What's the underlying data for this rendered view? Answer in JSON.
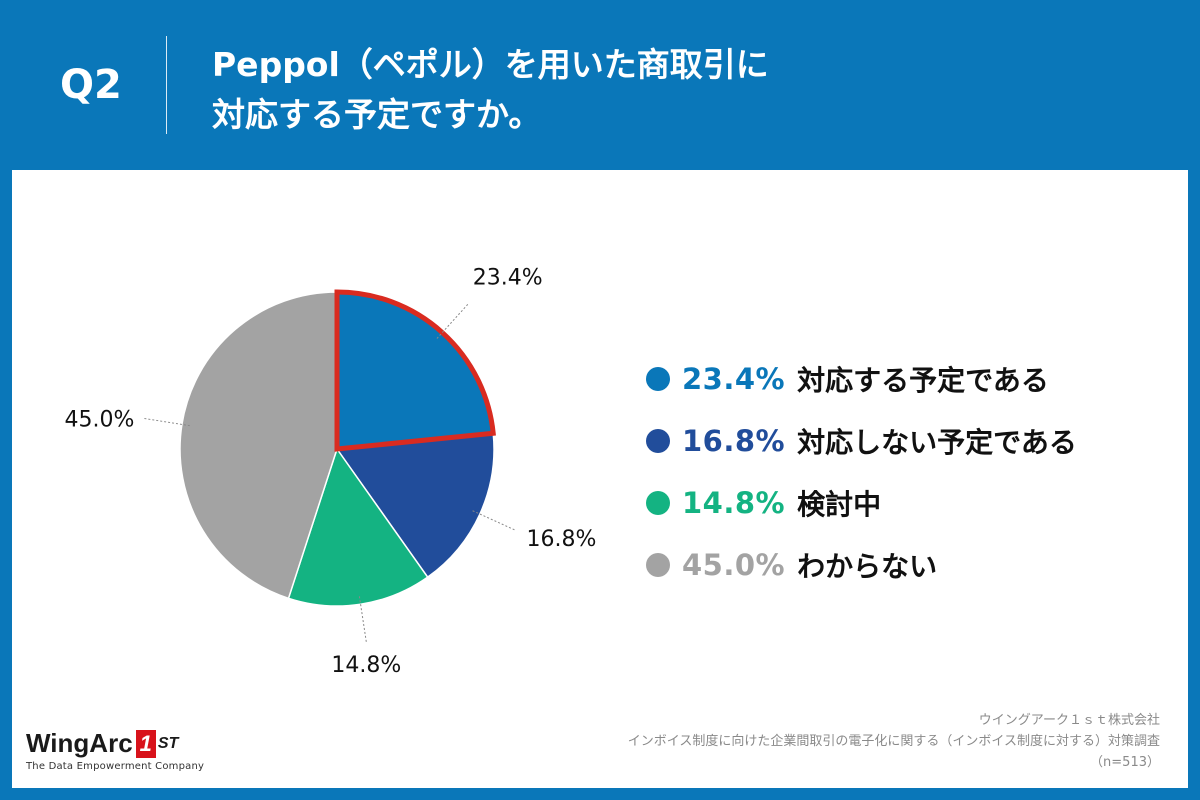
{
  "header": {
    "qnum": "Q2",
    "question_line1": "Peppol（ペポル）を用いた商取引に",
    "question_line2": "対応する予定ですか。"
  },
  "chart_data": {
    "type": "pie",
    "title": "Peppol（ペポル）を用いた商取引に対応する予定ですか。",
    "unit": "%",
    "start": "12 o'clock, clockwise",
    "highlighted_slice": 0,
    "slices": [
      {
        "label": "対応する予定である",
        "value": 23.4,
        "value_label": "23.4%",
        "color": "#0a77b9"
      },
      {
        "label": "対応しない予定である",
        "value": 16.8,
        "value_label": "16.8%",
        "color": "#214d9b"
      },
      {
        "label": "検討中",
        "value": 14.8,
        "value_label": "14.8%",
        "color": "#14b382"
      },
      {
        "label": "わからない",
        "value": 45.0,
        "value_label": "45.0%",
        "color": "#a3a3a3"
      }
    ]
  },
  "colors": {
    "highlight": "#d92b20",
    "header_bg": "#0a77b9"
  },
  "footer": {
    "company": "ウイングアーク１ｓｔ株式会社",
    "survey": "インボイス制度に向けた企業間取引の電子化に関する（インボイス制度に対する）対策調査",
    "sample": "（n=513）"
  },
  "logo": {
    "brand": "WingArc",
    "badge": "1",
    "suffix": "ST",
    "tagline": "The Data Empowerment Company"
  }
}
